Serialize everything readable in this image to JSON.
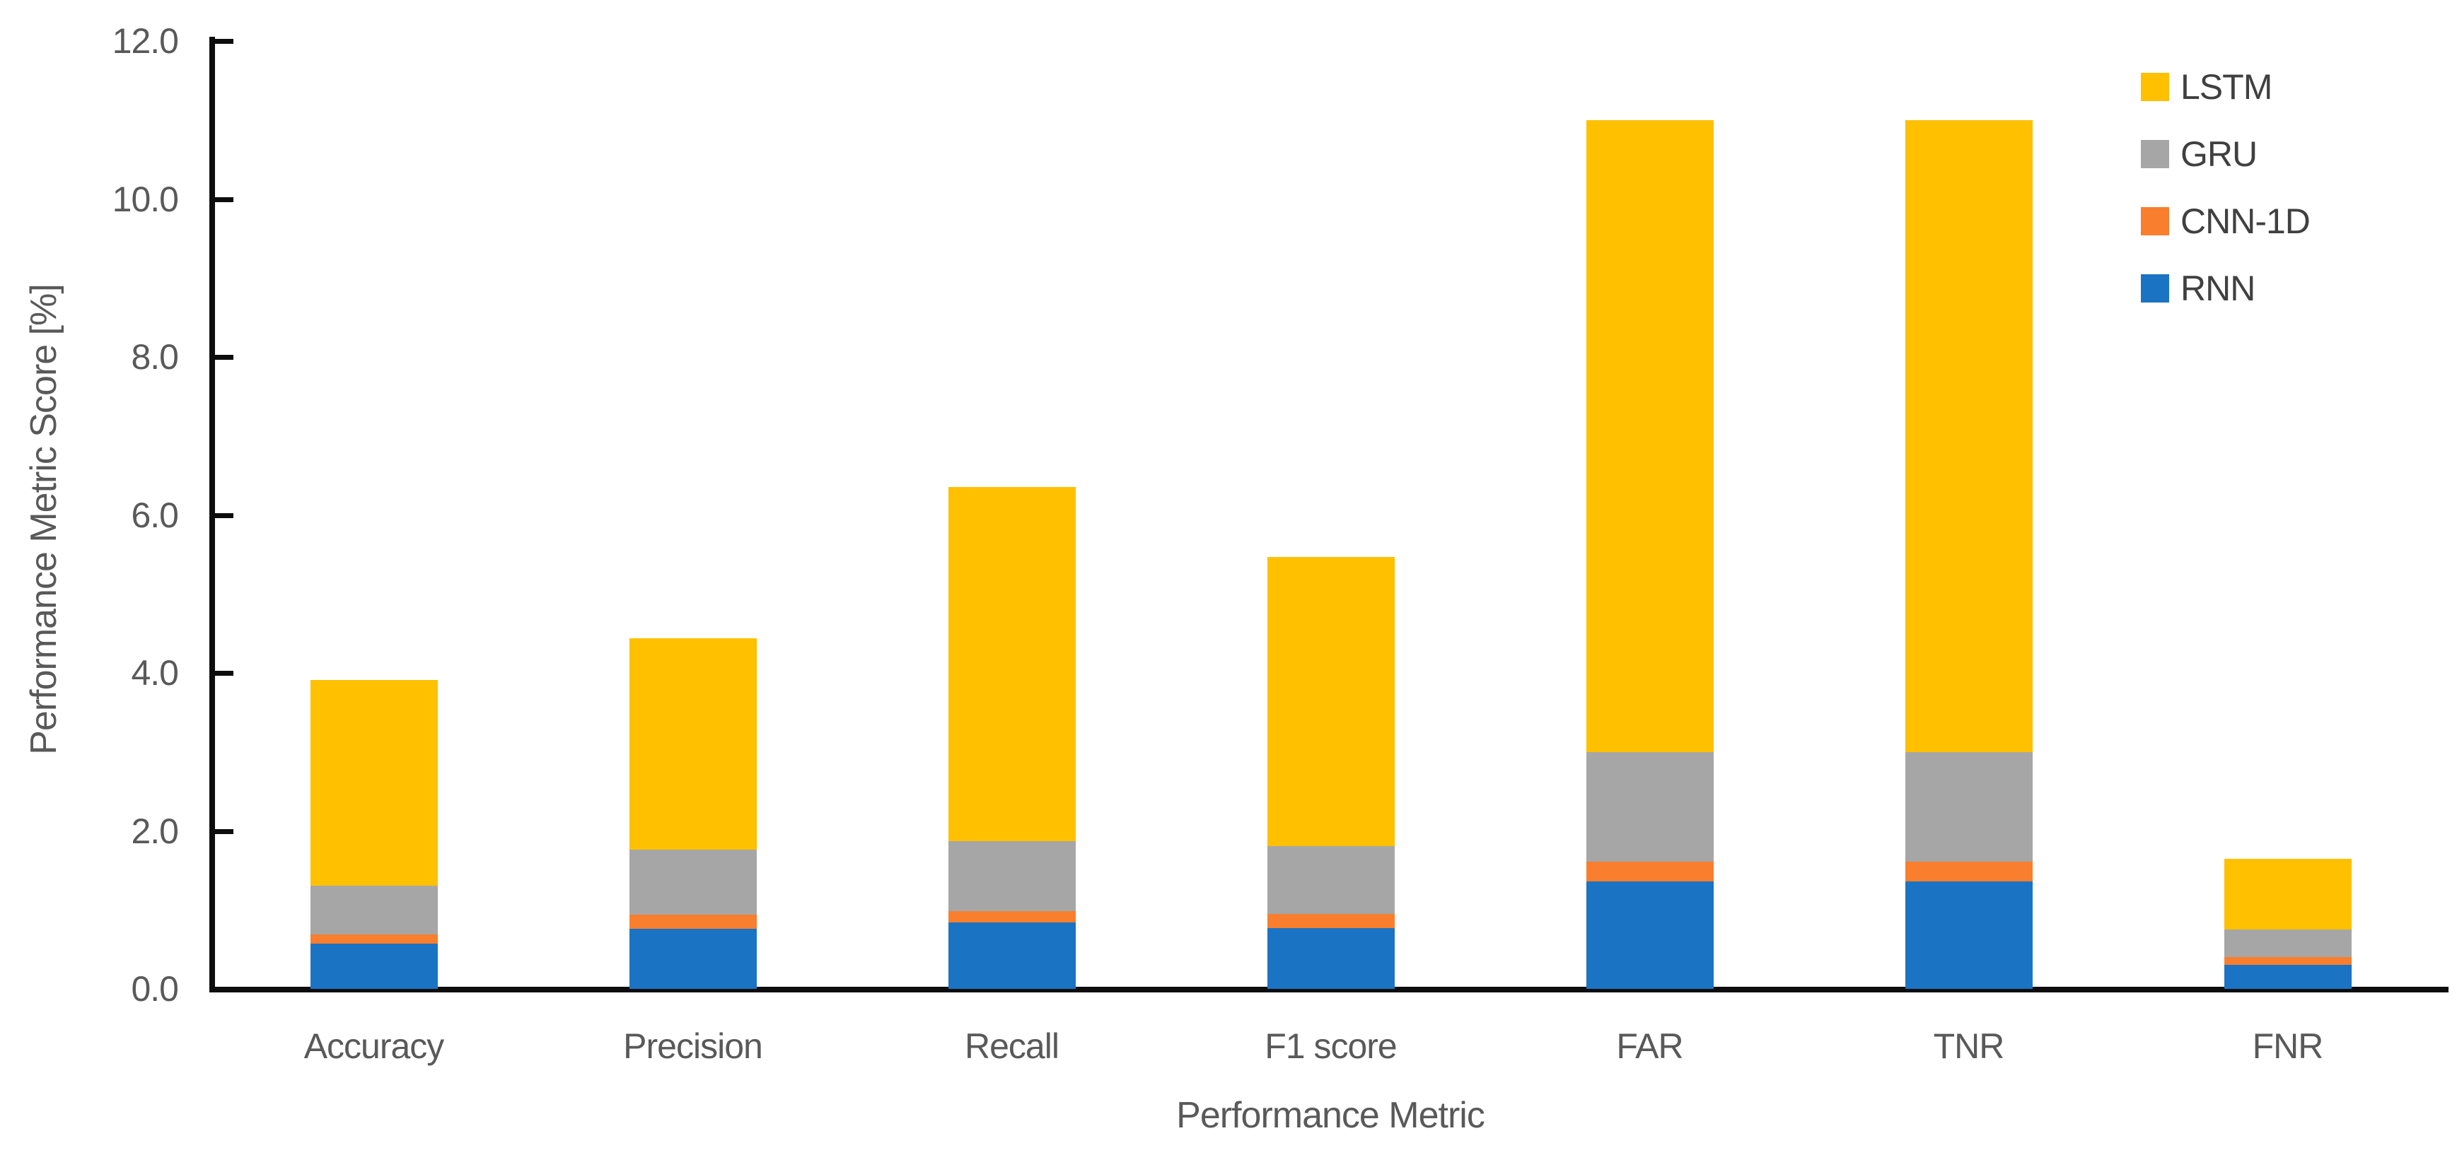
{
  "chart_data": {
    "type": "bar",
    "stacked": true,
    "title": "",
    "xlabel": "Performance Metric",
    "ylabel": "Performance Metric Score [%]",
    "categories": [
      "Accuracy",
      "Precision",
      "Recall",
      "F1 score",
      "FAR",
      "TNR",
      "FNR"
    ],
    "series": [
      {
        "name": "RNN",
        "color": "#1b73c4",
        "values": [
          0.57,
          0.76,
          0.84,
          0.77,
          1.36,
          1.36,
          0.3
        ]
      },
      {
        "name": "CNN-1D",
        "color": "#f97e2d",
        "values": [
          0.12,
          0.18,
          0.14,
          0.18,
          0.25,
          0.25,
          0.1
        ]
      },
      {
        "name": "GRU",
        "color": "#a6a6a6",
        "values": [
          0.62,
          0.82,
          0.89,
          0.86,
          1.39,
          1.39,
          0.35
        ]
      },
      {
        "name": "LSTM",
        "color": "#ffc000",
        "values": [
          2.6,
          2.68,
          4.48,
          3.66,
          8.0,
          8.0,
          0.9
        ]
      }
    ],
    "totals": [
      3.91,
      4.44,
      6.35,
      5.47,
      11.0,
      11.0,
      1.65
    ],
    "ylim": [
      0,
      12
    ],
    "ytick_labels": [
      "0.0",
      "2.0",
      "4.0",
      "6.0",
      "8.0",
      "10.0",
      "12.0"
    ],
    "ytick_step": 2,
    "grid": false,
    "legend_position": "top-right",
    "legend_order": [
      "LSTM",
      "GRU",
      "CNN-1D",
      "RNN"
    ],
    "axis_color": "#0d0d0d",
    "text_color": "#595959",
    "legend_text_color": "#404040"
  }
}
